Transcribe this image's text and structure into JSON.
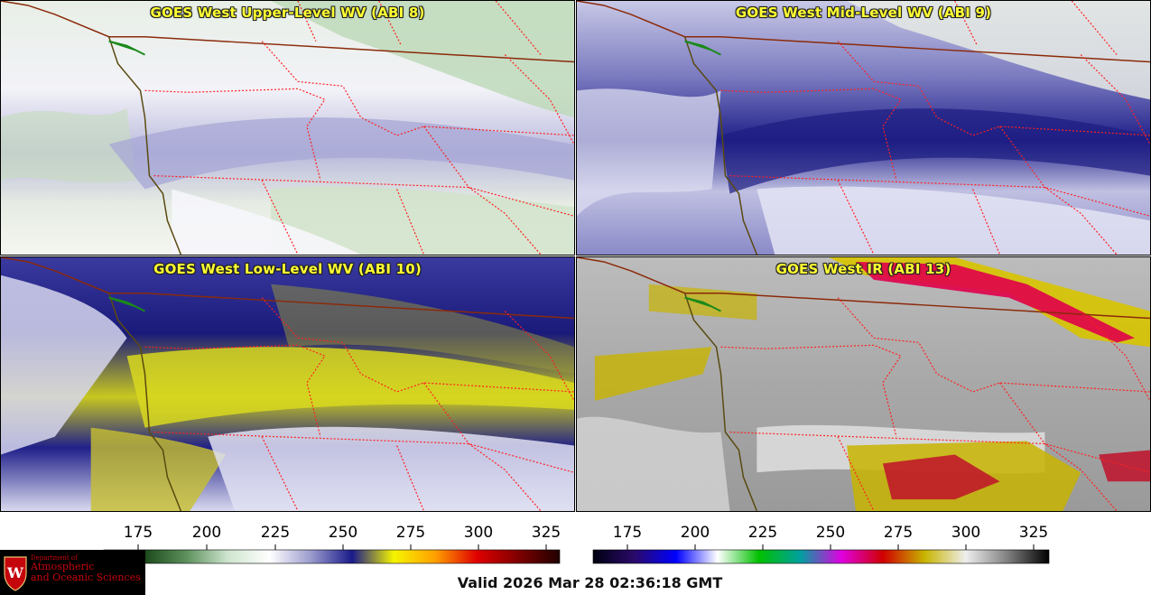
{
  "panels": [
    {
      "id": "p1",
      "title": "GOES West Upper-Level WV (ABI 8)",
      "style": "wv-upper"
    },
    {
      "id": "p2",
      "title": "GOES West Mid-Level WV (ABI 9)",
      "style": "wv-mid"
    },
    {
      "id": "p3",
      "title": "GOES West Low-Level WV (ABI 10)",
      "style": "wv-low"
    },
    {
      "id": "p4",
      "title": "GOES West IR (ABI 13)",
      "style": "ir"
    }
  ],
  "colorbars": {
    "wv": {
      "ticks": [
        "175",
        "200",
        "225",
        "250",
        "275",
        "300",
        "325"
      ],
      "colors": [
        "#0a1a0a",
        "#1c4a1c",
        "#5e915e",
        "#cfe5cf",
        "#ffffff",
        "#9a9acd",
        "#1a1a8a",
        "#f5f500",
        "#ffa000",
        "#e00000",
        "#800000",
        "#200000"
      ]
    },
    "ir": {
      "ticks": [
        "175",
        "200",
        "225",
        "250",
        "275",
        "300",
        "325"
      ],
      "colors": [
        "#000010",
        "#2a0a6a",
        "#0000ff",
        "#ffffff",
        "#00c000",
        "#00a0a0",
        "#e000e0",
        "#d00000",
        "#c8b400",
        "#eeeeee",
        "#808080",
        "#000000"
      ]
    }
  },
  "logo": {
    "dept": "Department of",
    "line1": "Atmospheric",
    "line2": "and Oceanic Sciences",
    "seal": "W"
  },
  "footer": {
    "valid": "Valid 2026 Mar 28 02:36:18 GMT"
  },
  "colors": {
    "title_text": "#ffff33",
    "state_borders": "#ff2020",
    "intl_border": "#8b2a0a",
    "coastline": "#5a4a10"
  }
}
